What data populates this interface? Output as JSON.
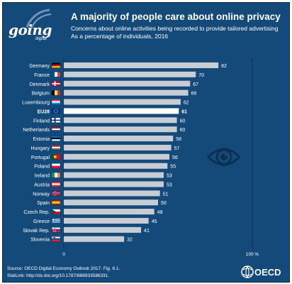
{
  "brand": {
    "name": "going",
    "sub": "digital"
  },
  "header": {
    "title": "A majority of people care about online privacy",
    "subtitle_1": "Concerns about online activities being recorded to provide tailored advertising",
    "subtitle_2": "As a percentage of individuals, 2016"
  },
  "chart_data": {
    "type": "bar",
    "orientation": "horizontal",
    "categories": [
      "Germany",
      "France",
      "Denmark",
      "Belgium",
      "Luxembourg",
      "EU28",
      "Finland",
      "Netherlands",
      "Estonia",
      "Hungary",
      "Portugal",
      "Poland",
      "Ireland",
      "Austria",
      "Norway",
      "Spain",
      "Czech Rep.",
      "Greece",
      "Slovak Rep.",
      "Slovenia"
    ],
    "values": [
      82,
      70,
      67,
      66,
      62,
      61,
      60,
      60,
      58,
      57,
      56,
      55,
      53,
      53,
      51,
      50,
      48,
      45,
      41,
      32
    ],
    "highlight": "EU28",
    "xlim": [
      0,
      100
    ],
    "x_tick_labels": [
      "0",
      "100 %"
    ],
    "colors": {
      "bar": "#c8ccd3",
      "highlight_bar": "#ffffff",
      "background": "#144a7a",
      "label": "#ffffff"
    },
    "flag_icons": [
      "germany-flag-icon",
      "france-flag-icon",
      "denmark-flag-icon",
      "belgium-flag-icon",
      "luxembourg-flag-icon",
      "eu-flag-icon",
      "finland-flag-icon",
      "netherlands-flag-icon",
      "estonia-flag-icon",
      "hungary-flag-icon",
      "portugal-flag-icon",
      "poland-flag-icon",
      "ireland-flag-icon",
      "austria-flag-icon",
      "norway-flag-icon",
      "spain-flag-icon",
      "czech-flag-icon",
      "greece-flag-icon",
      "slovakia-flag-icon",
      "slovenia-flag-icon"
    ],
    "grid": false,
    "legend": "none"
  },
  "decor": {
    "icon": "eye-icon"
  },
  "footer": {
    "source": "Source: OECD Digital Economy Outlook 2017. Fig. 6.1.",
    "statlink": "StatLink: http://dx.doi.org/10.1787/888933586331.",
    "logo_text": "OECD",
    "logo_icon": "oecd-globe-icon"
  }
}
